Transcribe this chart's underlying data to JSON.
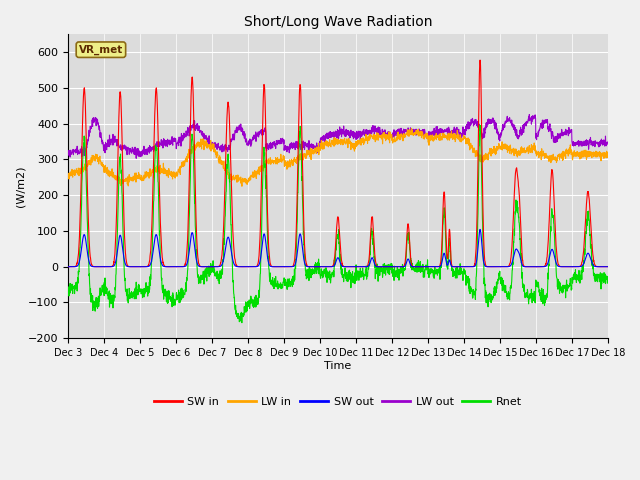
{
  "title": "Short/Long Wave Radiation",
  "xlabel": "Time",
  "ylabel": "(W/m2)",
  "ylim": [
    -200,
    650
  ],
  "yticks": [
    -200,
    -100,
    0,
    100,
    200,
    300,
    400,
    500,
    600
  ],
  "x_tick_labels": [
    "Dec 3",
    "Dec 4",
    "Dec 5",
    "Dec 6",
    "Dec 7",
    "Dec 8",
    "Dec 9",
    "Dec 10",
    "Dec 11",
    "Dec 12",
    "Dec 13",
    "Dec 14",
    "Dec 15",
    "Dec 16",
    "Dec 17",
    "Dec 18"
  ],
  "annotation_text": "VR_met",
  "plot_bg_color": "#dcdcdc",
  "fig_bg_color": "#f0f0f0",
  "colors": {
    "SW_in": "#ff0000",
    "LW_in": "#ffa500",
    "SW_out": "#0000ff",
    "LW_out": "#9900cc",
    "Rnet": "#00dd00"
  },
  "legend_labels": [
    "SW in",
    "LW in",
    "SW out",
    "LW out",
    "Rnet"
  ]
}
